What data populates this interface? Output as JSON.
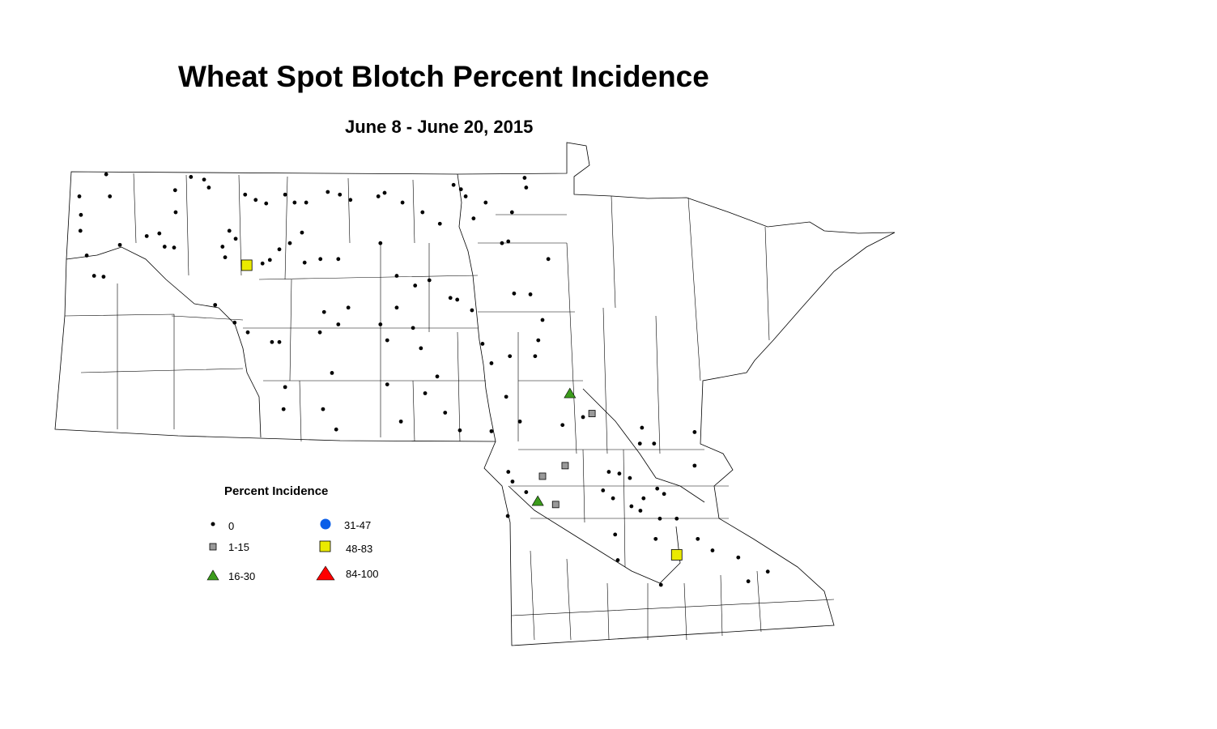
{
  "title": "Wheat Spot Blotch Percent Incidence",
  "subtitle": "June 8 - June 20, 2015",
  "legend": {
    "title": "Percent Incidence",
    "classes": [
      {
        "label": "0",
        "symbol": "dot",
        "color": "#000000"
      },
      {
        "label": "1-15",
        "symbol": "square",
        "color": "#999999"
      },
      {
        "label": "16-30",
        "symbol": "triangle",
        "color": "#3c9c1c"
      },
      {
        "label": "31-47",
        "symbol": "circle",
        "color": "#0a5ee8"
      },
      {
        "label": "48-83",
        "symbol": "square",
        "color": "#eaea00"
      },
      {
        "label": "84-100",
        "symbol": "triangle",
        "color": "#ff0000"
      }
    ]
  },
  "map_data": {
    "region": "North Dakota and Minnesota county map",
    "points_by_class": {
      "48-83": [
        [
          -100.67,
          47.95
        ],
        [
          -92.5,
          44.67
        ]
      ],
      "16-30": [
        [
          -94.53,
          46.5
        ],
        [
          -95.14,
          45.28
        ]
      ],
      "1-15": [
        [
          -94.11,
          46.27
        ],
        [
          -94.62,
          45.68
        ],
        [
          -95.05,
          45.56
        ],
        [
          -94.8,
          45.24
        ]
      ],
      "0": [
        [
          -103.34,
          48.98
        ],
        [
          -103.85,
          48.73
        ],
        [
          -103.27,
          48.73
        ],
        [
          -103.82,
          48.52
        ],
        [
          -103.83,
          48.34
        ],
        [
          -103.71,
          48.06
        ],
        [
          -103.57,
          47.83
        ],
        [
          -103.39,
          47.82
        ],
        [
          -103.08,
          48.18
        ],
        [
          -102.57,
          48.28
        ],
        [
          -102.33,
          48.31
        ],
        [
          -102.23,
          48.16
        ],
        [
          -102.05,
          48.15
        ],
        [
          -102.02,
          48.55
        ],
        [
          -102.03,
          48.8
        ],
        [
          -101.73,
          48.95
        ],
        [
          -101.48,
          48.92
        ],
        [
          -101.39,
          48.83
        ],
        [
          -100.7,
          48.75
        ],
        [
          -100.5,
          48.69
        ],
        [
          -100.3,
          48.65
        ],
        [
          -99.94,
          48.75
        ],
        [
          -99.76,
          48.66
        ],
        [
          -99.54,
          48.66
        ],
        [
          -99.13,
          48.78
        ],
        [
          -98.9,
          48.75
        ],
        [
          -98.7,
          48.69
        ],
        [
          -98.17,
          48.73
        ],
        [
          -98.05,
          48.77
        ],
        [
          -97.71,
          48.66
        ],
        [
          -97.33,
          48.55
        ],
        [
          -97.0,
          48.42
        ],
        [
          -96.74,
          48.86
        ],
        [
          -96.6,
          48.81
        ],
        [
          -96.51,
          48.73
        ],
        [
          -96.13,
          48.66
        ],
        [
          -96.36,
          48.48
        ],
        [
          -95.63,
          48.55
        ],
        [
          -95.39,
          48.94
        ],
        [
          -95.36,
          48.83
        ],
        [
          -101.13,
          48.16
        ],
        [
          -101.08,
          48.04
        ],
        [
          -101.0,
          48.34
        ],
        [
          -100.88,
          48.25
        ],
        [
          -100.37,
          47.97
        ],
        [
          -100.23,
          48.01
        ],
        [
          -100.05,
          48.13
        ],
        [
          -99.85,
          48.2
        ],
        [
          -99.57,
          47.98
        ],
        [
          -99.27,
          48.02
        ],
        [
          -98.93,
          48.02
        ],
        [
          -99.62,
          48.32
        ],
        [
          -98.13,
          48.2
        ],
        [
          -97.82,
          47.83
        ],
        [
          -97.47,
          47.72
        ],
        [
          -97.2,
          47.78
        ],
        [
          -96.8,
          47.58
        ],
        [
          -96.67,
          47.56
        ],
        [
          -96.39,
          47.44
        ],
        [
          -95.82,
          48.2
        ],
        [
          -95.7,
          48.22
        ],
        [
          -95.59,
          47.63
        ],
        [
          -95.28,
          47.62
        ],
        [
          -94.94,
          48.02
        ],
        [
          -95.05,
          47.33
        ],
        [
          -95.13,
          47.1
        ],
        [
          -95.19,
          46.92
        ],
        [
          -96.19,
          47.06
        ],
        [
          -96.02,
          46.84
        ],
        [
          -95.67,
          46.92
        ],
        [
          -99.2,
          47.42
        ],
        [
          -99.28,
          47.19
        ],
        [
          -98.93,
          47.28
        ],
        [
          -98.74,
          47.47
        ],
        [
          -98.13,
          47.28
        ],
        [
          -98.0,
          47.1
        ],
        [
          -97.82,
          47.47
        ],
        [
          -97.51,
          47.24
        ],
        [
          -97.36,
          47.01
        ],
        [
          -97.05,
          46.69
        ],
        [
          -99.05,
          46.73
        ],
        [
          -99.94,
          46.57
        ],
        [
          -99.97,
          46.32
        ],
        [
          -99.22,
          46.32
        ],
        [
          -98.97,
          46.09
        ],
        [
          -98.0,
          46.6
        ],
        [
          -97.74,
          46.18
        ],
        [
          -97.28,
          46.5
        ],
        [
          -96.9,
          46.28
        ],
        [
          -96.62,
          46.08
        ],
        [
          -96.02,
          46.07
        ],
        [
          -95.74,
          46.46
        ],
        [
          -95.48,
          46.18
        ],
        [
          -94.67,
          46.14
        ],
        [
          -94.28,
          46.23
        ],
        [
          -93.16,
          46.11
        ],
        [
          -92.93,
          45.93
        ],
        [
          -92.16,
          46.06
        ],
        [
          -92.16,
          45.68
        ],
        [
          -93.2,
          45.93
        ],
        [
          -93.79,
          45.61
        ],
        [
          -93.59,
          45.59
        ],
        [
          -93.39,
          45.54
        ],
        [
          -93.9,
          45.4
        ],
        [
          -93.71,
          45.31
        ],
        [
          -93.13,
          45.31
        ],
        [
          -92.87,
          45.42
        ],
        [
          -92.74,
          45.36
        ],
        [
          -92.82,
          45.08
        ],
        [
          -93.36,
          45.22
        ],
        [
          -93.19,
          45.17
        ],
        [
          -93.67,
          44.9
        ],
        [
          -92.9,
          44.85
        ],
        [
          -92.5,
          45.08
        ],
        [
          -92.1,
          44.85
        ],
        [
          -91.82,
          44.72
        ],
        [
          -91.33,
          44.64
        ],
        [
          -90.77,
          44.48
        ],
        [
          -91.14,
          44.37
        ],
        [
          -92.8,
          44.33
        ],
        [
          -93.62,
          44.61
        ],
        [
          -95.7,
          45.61
        ],
        [
          -95.62,
          45.5
        ],
        [
          -95.71,
          45.11
        ],
        [
          -95.36,
          45.38
        ],
        [
          -101.27,
          47.5
        ],
        [
          -100.9,
          47.3
        ],
        [
          -100.19,
          47.08
        ],
        [
          -100.05,
          47.08
        ],
        [
          -100.65,
          47.19
        ]
      ]
    }
  }
}
